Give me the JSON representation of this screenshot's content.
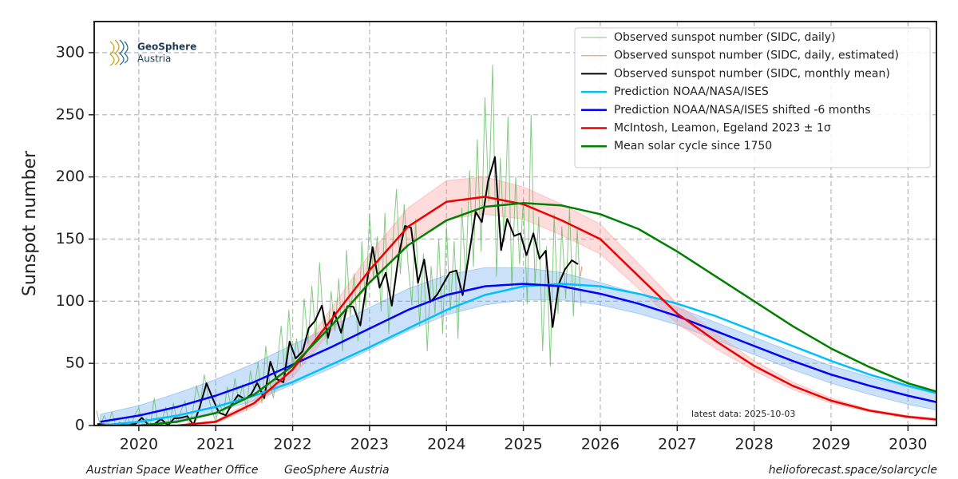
{
  "chart_data": {
    "type": "line",
    "y_label": "Sunspot number",
    "xlim": [
      2019.42,
      2030.37
    ],
    "ylim": [
      0,
      325
    ],
    "xticks": [
      2020,
      2021,
      2022,
      2023,
      2024,
      2025,
      2026,
      2027,
      2028,
      2029,
      2030
    ],
    "yticks": [
      0,
      50,
      100,
      150,
      200,
      250,
      300
    ],
    "grid": true,
    "legend": "upper right",
    "logo": [
      "GeoSphere",
      "Austria"
    ],
    "annotation": "latest data: 2025-10-03",
    "footer_left": [
      "Austrian Space Weather Office",
      "GeoSphere Austria"
    ],
    "footer_right": "helioforecast.space/solarcycle",
    "series": [
      {
        "name": "Observed sunspot number (SIDC, daily)",
        "color": "#5cb85c",
        "width": 1,
        "opacity": 0.75,
        "x": [
          2019.45,
          2019.5,
          2019.55,
          2019.6,
          2019.65,
          2019.7,
          2019.75,
          2019.8,
          2019.85,
          2019.9,
          2019.95,
          2020,
          2020.05,
          2020.1,
          2020.15,
          2020.2,
          2020.25,
          2020.3,
          2020.35,
          2020.4,
          2020.45,
          2020.5,
          2020.55,
          2020.6,
          2020.65,
          2020.7,
          2020.75,
          2020.8,
          2020.85,
          2020.9,
          2020.95,
          2021,
          2021.05,
          2021.1,
          2021.15,
          2021.2,
          2021.25,
          2021.3,
          2021.35,
          2021.4,
          2021.45,
          2021.5,
          2021.55,
          2021.6,
          2021.65,
          2021.7,
          2021.75,
          2021.8,
          2021.85,
          2021.9,
          2021.95,
          2022,
          2022.05,
          2022.1,
          2022.15,
          2022.2,
          2022.25,
          2022.3,
          2022.35,
          2022.4,
          2022.45,
          2022.5,
          2022.55,
          2022.6,
          2022.65,
          2022.7,
          2022.75,
          2022.8,
          2022.85,
          2022.9,
          2022.95,
          2023,
          2023.05,
          2023.1,
          2023.15,
          2023.2,
          2023.25,
          2023.3,
          2023.35,
          2023.4,
          2023.45,
          2023.5,
          2023.55,
          2023.6,
          2023.65,
          2023.7,
          2023.75,
          2023.8,
          2023.85,
          2023.9,
          2023.95,
          2024,
          2024.05,
          2024.1,
          2024.15,
          2024.2,
          2024.25,
          2024.3,
          2024.35,
          2024.4,
          2024.45,
          2024.5,
          2024.55,
          2024.6,
          2024.65,
          2024.7,
          2024.75,
          2024.8,
          2024.85,
          2024.9,
          2024.95,
          2025,
          2025.05,
          2025.1,
          2025.15,
          2025.2,
          2025.25,
          2025.3,
          2025.35,
          2025.4,
          2025.45,
          2025.5,
          2025.55,
          2025.6,
          2025.65,
          2025.7,
          2025.75
        ],
        "values": [
          12,
          0,
          8,
          0,
          11,
          0,
          3,
          0,
          7,
          0,
          9,
          14,
          0,
          6,
          0,
          22,
          0,
          4,
          15,
          0,
          18,
          2,
          12,
          20,
          0,
          11,
          32,
          18,
          41,
          24,
          12,
          3,
          18,
          9,
          31,
          14,
          38,
          19,
          33,
          12,
          44,
          28,
          51,
          18,
          64,
          35,
          22,
          48,
          80,
          41,
          93,
          45,
          70,
          48,
          102,
          66,
          112,
          70,
          131,
          82,
          65,
          108,
          76,
          118,
          60,
          141,
          88,
          122,
          68,
          148,
          95,
          170,
          118,
          152,
          92,
          171,
          74,
          145,
          190,
          122,
          178,
          130,
          97,
          166,
          80,
          138,
          60,
          128,
          90,
          150,
          74,
          160,
          92,
          148,
          70,
          175,
          118,
          205,
          128,
          230,
          140,
          264,
          180,
          290,
          120,
          215,
          148,
          248,
          110,
          200,
          130,
          182,
          98,
          250,
          112,
          168,
          60,
          144,
          48,
          170,
          90,
          160,
          102,
          175,
          88,
          158,
          96
        ]
      },
      {
        "name": "Observed sunspot number (SIDC, daily, estimated)",
        "color": "#ff7f50",
        "width": 1,
        "x": [
          2025.74,
          2025.76
        ],
        "values": [
          120,
          128
        ]
      },
      {
        "name": "Observed sunspot number (SIDC, monthly mean)",
        "color": "#000000",
        "width": 2,
        "x": [
          2019.46,
          2019.54,
          2019.63,
          2019.71,
          2019.79,
          2019.88,
          2019.96,
          2020.04,
          2020.13,
          2020.21,
          2020.29,
          2020.38,
          2020.46,
          2020.54,
          2020.63,
          2020.71,
          2020.79,
          2020.88,
          2020.96,
          2021.04,
          2021.13,
          2021.21,
          2021.29,
          2021.38,
          2021.46,
          2021.54,
          2021.63,
          2021.71,
          2021.79,
          2021.88,
          2021.96,
          2022.04,
          2022.13,
          2022.21,
          2022.29,
          2022.38,
          2022.46,
          2022.54,
          2022.63,
          2022.71,
          2022.79,
          2022.88,
          2022.96,
          2023.04,
          2023.13,
          2023.21,
          2023.29,
          2023.38,
          2023.46,
          2023.54,
          2023.63,
          2023.71,
          2023.79,
          2023.88,
          2023.96,
          2024.04,
          2024.13,
          2024.21,
          2024.29,
          2024.38,
          2024.46,
          2024.54,
          2024.63,
          2024.71,
          2024.79,
          2024.88,
          2024.96,
          2025.04,
          2025.13,
          2025.21,
          2025.29,
          2025.38,
          2025.46,
          2025.54,
          2025.63,
          2025.71
        ],
        "values": [
          1.2,
          0.9,
          0.5,
          1.1,
          0.4,
          0.5,
          1.5,
          6.2,
          0.2,
          1.5,
          5.2,
          0.2,
          5.8,
          6.1,
          7.5,
          0.6,
          14.4,
          34.0,
          21.8,
          10.4,
          8.2,
          17.2,
          24.5,
          21.2,
          25.0,
          34.3,
          22.0,
          51.3,
          37.4,
          34.8,
          67.5,
          54.0,
          59.7,
          78.5,
          84.1,
          96.5,
          70.5,
          91.4,
          74.6,
          96.0,
          95.5,
          80.5,
          113.1,
          143.6,
          110.9,
          122.8,
          96.4,
          137.4,
          160.5,
          159.1,
          114.8,
          133.6,
          99.4,
          105.4,
          114.2,
          123.0,
          124.7,
          104.9,
          136.5,
          172.0,
          163.6,
          196.6,
          216.0,
          141.1,
          166.3,
          152.5,
          154.5,
          137.0,
          154.6,
          134.2,
          140.6,
          79.2,
          113.8,
          125.6,
          132.9,
          129.8
        ]
      },
      {
        "name": "Prediction NOAA/NASA/ISES",
        "color": "#00bfff",
        "width": 2.5,
        "x": [
          2019.5,
          2020,
          2020.5,
          2021,
          2021.5,
          2022,
          2022.5,
          2023,
          2023.5,
          2024,
          2024.5,
          2025,
          2025.5,
          2026,
          2026.5,
          2027,
          2027.5,
          2028,
          2028.5,
          2029,
          2029.5,
          2030,
          2030.5
        ],
        "values": [
          0,
          3,
          8,
          15,
          24,
          35,
          49,
          63,
          78,
          93,
          105,
          112,
          114,
          112,
          106,
          98,
          88,
          76,
          64,
          52,
          41,
          32,
          24
        ]
      },
      {
        "name": "Prediction NOAA/NASA/ISES shifted -6 months",
        "color": "#0000ff",
        "width": 2.5,
        "band_color": "#6aaaf0",
        "x": [
          2019.5,
          2020,
          2020.5,
          2021,
          2021.5,
          2022,
          2022.5,
          2023,
          2023.5,
          2024,
          2024.5,
          2025,
          2025.5,
          2026,
          2026.5,
          2027,
          2027.5,
          2028,
          2028.5,
          2029,
          2029.5,
          2030,
          2030.5
        ],
        "values": [
          3,
          8,
          15,
          24,
          35,
          49,
          63,
          78,
          93,
          105,
          112,
          114,
          112,
          106,
          98,
          88,
          76,
          64,
          52,
          41,
          32,
          24,
          17
        ],
        "lower": [
          0,
          0,
          4,
          11,
          20,
          33,
          46,
          61,
          76,
          89,
          97,
          101,
          101,
          97,
          90,
          81,
          69,
          57,
          45,
          34,
          25,
          17,
          11
        ],
        "upper": [
          9,
          16,
          26,
          37,
          50,
          65,
          80,
          95,
          110,
          121,
          127,
          127,
          123,
          115,
          106,
          95,
          83,
          71,
          59,
          48,
          39,
          31,
          23
        ]
      },
      {
        "name": "McIntosh, Leamon, Egeland 2023 ± 1σ",
        "color": "#ee0000",
        "width": 2.5,
        "band_color": "#ff9a9a",
        "x": [
          2019.5,
          2020,
          2020.5,
          2021,
          2021.5,
          2022,
          2022.5,
          2023,
          2023.5,
          2024,
          2024.5,
          2025,
          2025.5,
          2026,
          2026.5,
          2027,
          2027.5,
          2028,
          2028.5,
          2029,
          2029.5,
          2030,
          2030.5
        ],
        "values": [
          0,
          0,
          0,
          3,
          18,
          45,
          85,
          125,
          160,
          180,
          184,
          178,
          165,
          150,
          120,
          90,
          68,
          48,
          32,
          20,
          12,
          7,
          4
        ],
        "lower": [
          0,
          0,
          0,
          2,
          15,
          39,
          76,
          114,
          147,
          166,
          170,
          166,
          153,
          138,
          110,
          82,
          62,
          44,
          29,
          18,
          11,
          6,
          3
        ],
        "upper": [
          0,
          0,
          0,
          4,
          21,
          51,
          94,
          138,
          175,
          197,
          200,
          192,
          178,
          162,
          130,
          98,
          74,
          52,
          35,
          22,
          13,
          8,
          5
        ]
      },
      {
        "name": "Mean solar cycle since 1750",
        "color": "#008000",
        "width": 2.5,
        "x": [
          2020,
          2020.5,
          2021,
          2021.5,
          2022,
          2022.5,
          2023,
          2023.5,
          2024,
          2024.5,
          2025,
          2025.5,
          2026,
          2026.5,
          2027,
          2027.5,
          2028,
          2028.5,
          2029,
          2029.5,
          2030,
          2030.5
        ],
        "values": [
          0,
          3,
          10,
          25,
          48,
          80,
          115,
          145,
          165,
          176,
          179,
          177,
          170,
          158,
          140,
          120,
          100,
          80,
          62,
          47,
          34,
          25
        ]
      }
    ]
  }
}
